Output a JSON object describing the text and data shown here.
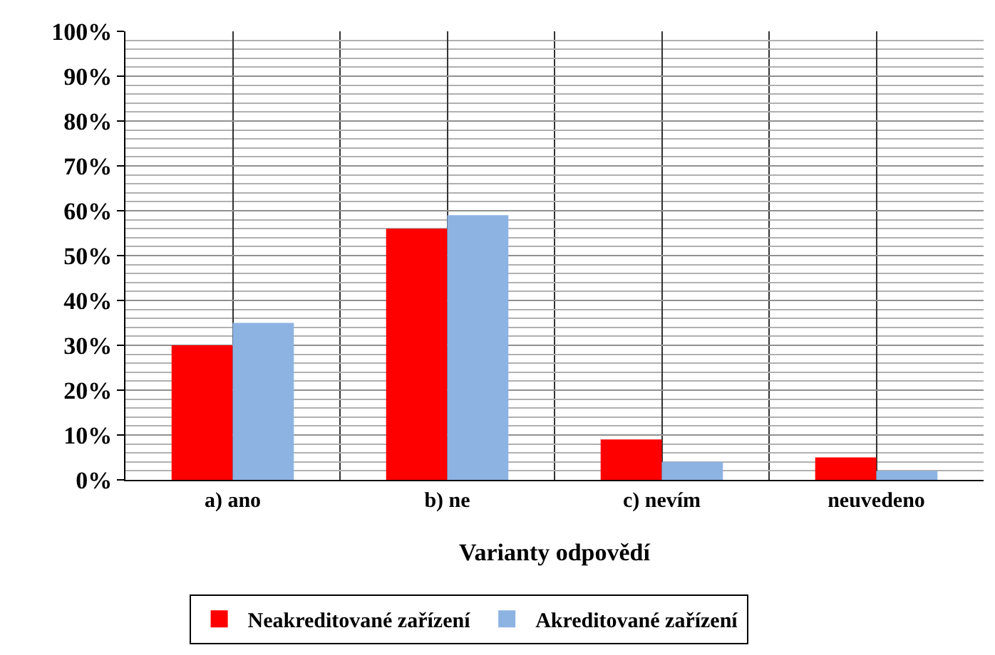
{
  "chart_data": {
    "type": "bar",
    "xlabel": "Varianty odpovědí",
    "categories": [
      "a) ano",
      "b) ne",
      "c) nevím",
      "neuvedeno"
    ],
    "series": [
      {
        "name": "Neakreditované zařízení",
        "color": "#ff0000",
        "values": [
          30,
          56,
          9,
          5
        ]
      },
      {
        "name": "Akreditované zařízení",
        "color": "#8db3e2",
        "values": [
          35,
          59,
          4,
          2
        ]
      }
    ],
    "ylim": [
      0,
      100
    ],
    "yticks": [
      {
        "value": 0,
        "label": "0%"
      },
      {
        "value": 2,
        "label": null
      },
      {
        "value": 4,
        "label": null
      },
      {
        "value": 6,
        "label": null
      },
      {
        "value": 8,
        "label": null
      },
      {
        "value": 10,
        "label": "10%"
      },
      {
        "value": 12,
        "label": null
      },
      {
        "value": 14,
        "label": null
      },
      {
        "value": 16,
        "label": null
      },
      {
        "value": 18,
        "label": null
      },
      {
        "value": 20,
        "label": "20%"
      },
      {
        "value": 22,
        "label": null
      },
      {
        "value": 24,
        "label": null
      },
      {
        "value": 26,
        "label": null
      },
      {
        "value": 28,
        "label": null
      },
      {
        "value": 30,
        "label": "30%"
      },
      {
        "value": 32,
        "label": null
      },
      {
        "value": 34,
        "label": null
      },
      {
        "value": 36,
        "label": null
      },
      {
        "value": 38,
        "label": null
      },
      {
        "value": 40,
        "label": "40%"
      },
      {
        "value": 42,
        "label": null
      },
      {
        "value": 44,
        "label": null
      },
      {
        "value": 46,
        "label": null
      },
      {
        "value": 48,
        "label": null
      },
      {
        "value": 50,
        "label": "50%"
      },
      {
        "value": 52,
        "label": null
      },
      {
        "value": 54,
        "label": null
      },
      {
        "value": 56,
        "label": null
      },
      {
        "value": 58,
        "label": null
      },
      {
        "value": 60,
        "label": "60%"
      },
      {
        "value": 62,
        "label": null
      },
      {
        "value": 64,
        "label": null
      },
      {
        "value": 66,
        "label": null
      },
      {
        "value": 68,
        "label": null
      },
      {
        "value": 70,
        "label": "70%"
      },
      {
        "value": 72,
        "label": null
      },
      {
        "value": 74,
        "label": null
      },
      {
        "value": 76,
        "label": null
      },
      {
        "value": 78,
        "label": null
      },
      {
        "value": 80,
        "label": "80%"
      },
      {
        "value": 82,
        "label": null
      },
      {
        "value": 84,
        "label": null
      },
      {
        "value": 86,
        "label": null
      },
      {
        "value": 88,
        "label": null
      },
      {
        "value": 90,
        "label": "90%"
      },
      {
        "value": 92,
        "label": null
      },
      {
        "value": 94,
        "label": null
      },
      {
        "value": 96,
        "label": null
      },
      {
        "value": 98,
        "label": null
      },
      {
        "value": 100,
        "label": "100%"
      }
    ],
    "grid": true,
    "legend": "bottom"
  }
}
